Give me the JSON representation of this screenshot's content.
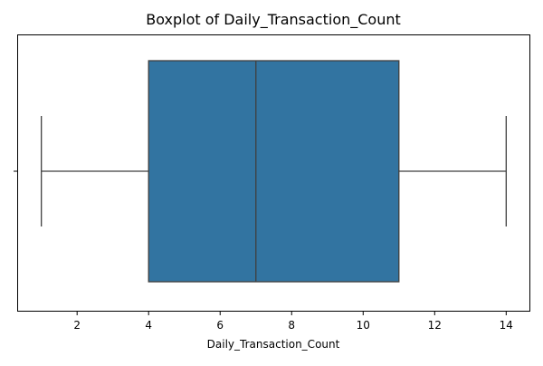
{
  "chart_data": {
    "type": "boxplot",
    "title": "Boxplot of Daily_Transaction_Count",
    "xlabel": "Daily_Transaction_Count",
    "ylabel": "",
    "orientation": "horizontal",
    "xlim": [
      0.35,
      14.65
    ],
    "x_ticks": [
      2,
      4,
      6,
      8,
      10,
      12,
      14
    ],
    "box": {
      "whisker_low": 1,
      "q1": 4,
      "median": 7,
      "q3": 11,
      "whisker_high": 14
    },
    "colors": {
      "box_fill": "#3274a1",
      "line": "#3f3f3f",
      "axis": "#000000"
    },
    "grid": false,
    "legend": false
  }
}
